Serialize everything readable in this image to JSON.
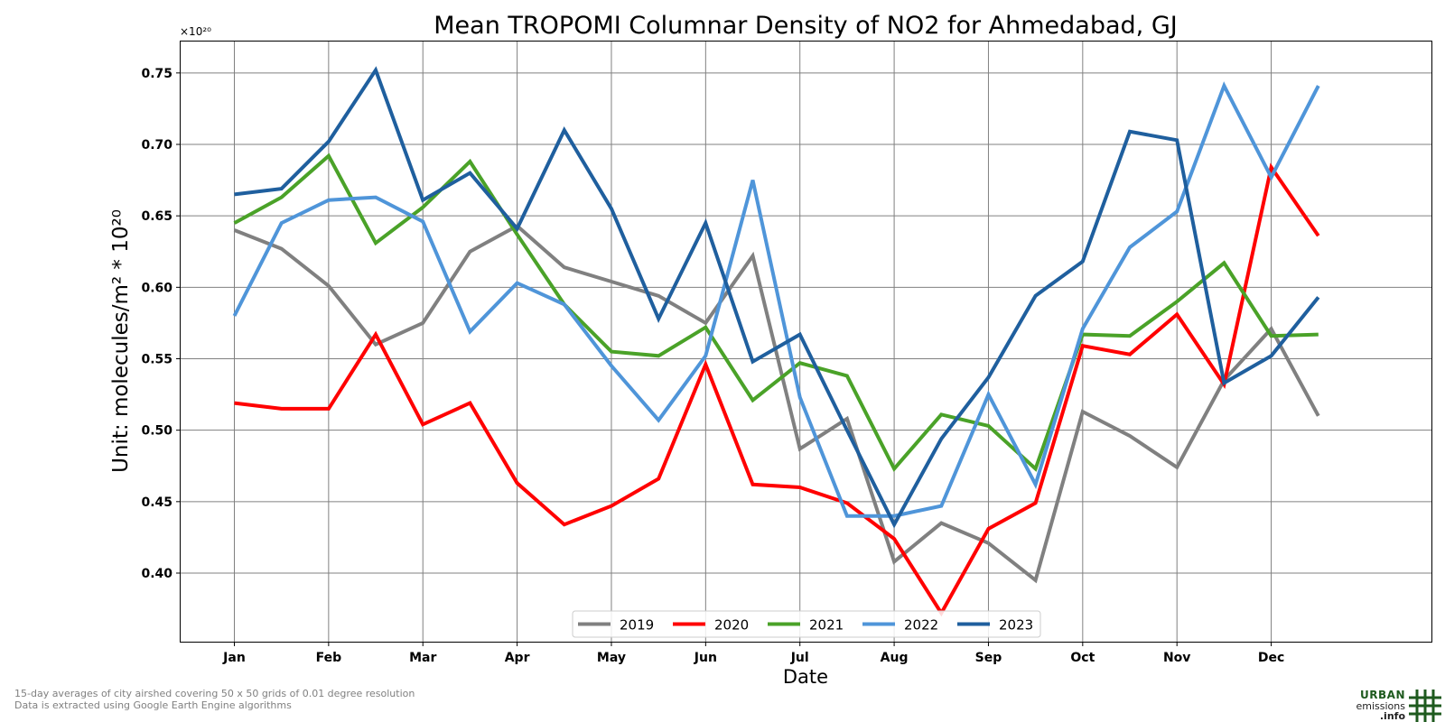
{
  "chart_data": {
    "type": "line",
    "title": "Mean TROPOMI Columnar Density of NO2 for Ahmedabad, GJ",
    "xlabel": "Date",
    "ylabel": "Unit: molecules/m² * 10²⁰",
    "y_offset_label": "×10²⁰",
    "x_tick_labels": [
      "Jan",
      "Feb",
      "Mar",
      "Apr",
      "May",
      "Jun",
      "Jul",
      "Aug",
      "Sep",
      "Oct",
      "Nov",
      "Dec"
    ],
    "y_ticks": [
      0.4,
      0.45,
      0.5,
      0.55,
      0.6,
      0.65,
      0.7,
      0.75
    ],
    "y_tick_labels": [
      "0.40",
      "0.45",
      "0.50",
      "0.55",
      "0.60",
      "0.65",
      "0.70",
      "0.75"
    ],
    "ylim": [
      0.352,
      0.772
    ],
    "grid": true,
    "legend_position": "bottom-center",
    "x_months": [
      1.0,
      1.5,
      2.0,
      2.5,
      3.0,
      3.5,
      4.0,
      4.5,
      5.0,
      5.5,
      6.0,
      6.5,
      7.0,
      7.5,
      8.0,
      8.5,
      9.0,
      9.5,
      10.0,
      10.5,
      11.0,
      11.5,
      12.0,
      12.5
    ],
    "xlim_months": [
      0.43,
      13.7
    ],
    "series": [
      {
        "name": "2019",
        "color": "#808080",
        "values": [
          0.64,
          0.627,
          0.601,
          0.56,
          0.575,
          0.625,
          0.643,
          0.614,
          0.604,
          0.594,
          0.575,
          0.622,
          0.487,
          0.508,
          0.408,
          0.435,
          0.421,
          0.395,
          0.513,
          0.496,
          0.474,
          0.535,
          0.571,
          0.51
        ]
      },
      {
        "name": "2020",
        "color": "#ff0000",
        "values": [
          0.519,
          0.515,
          0.515,
          0.567,
          0.504,
          0.519,
          0.463,
          0.434,
          0.447,
          0.466,
          0.546,
          0.462,
          0.46,
          0.449,
          0.424,
          0.372,
          0.431,
          0.449,
          0.559,
          0.553,
          0.581,
          0.532,
          0.684,
          0.636
        ]
      },
      {
        "name": "2021",
        "color": "#4aa228",
        "values": [
          0.645,
          0.663,
          0.692,
          0.631,
          0.656,
          0.688,
          0.637,
          0.588,
          0.555,
          0.552,
          0.572,
          0.521,
          0.547,
          0.538,
          0.473,
          0.511,
          0.503,
          0.473,
          0.567,
          0.566,
          0.59,
          0.617,
          0.566,
          0.567
        ]
      },
      {
        "name": "2022",
        "color": "#4f95d9",
        "values": [
          0.58,
          0.645,
          0.661,
          0.663,
          0.646,
          0.569,
          0.603,
          0.588,
          0.545,
          0.507,
          0.552,
          0.675,
          0.523,
          0.44,
          0.44,
          0.447,
          0.525,
          0.462,
          0.571,
          0.628,
          0.653,
          0.741,
          0.677,
          0.741
        ]
      },
      {
        "name": "2023",
        "color": "#1f5f9e",
        "values": [
          0.665,
          0.669,
          0.702,
          0.752,
          0.661,
          0.68,
          0.641,
          0.71,
          0.655,
          0.578,
          0.645,
          0.548,
          0.567,
          0.5,
          0.434,
          0.494,
          0.537,
          0.594,
          0.618,
          0.709,
          0.703,
          0.533,
          0.552,
          0.593
        ]
      }
    ]
  },
  "footnotes": {
    "line1": "15-day averages of city airshed covering 50 x 50 grids of 0.01 degree resolution",
    "line2": "Data is extracted using Google Earth Engine algorithms"
  },
  "logo": {
    "line1": "URBAN",
    "line2": "emissions",
    "line3": ".info",
    "icon": "grid-hash-icon",
    "color": "#1e5a1e"
  }
}
